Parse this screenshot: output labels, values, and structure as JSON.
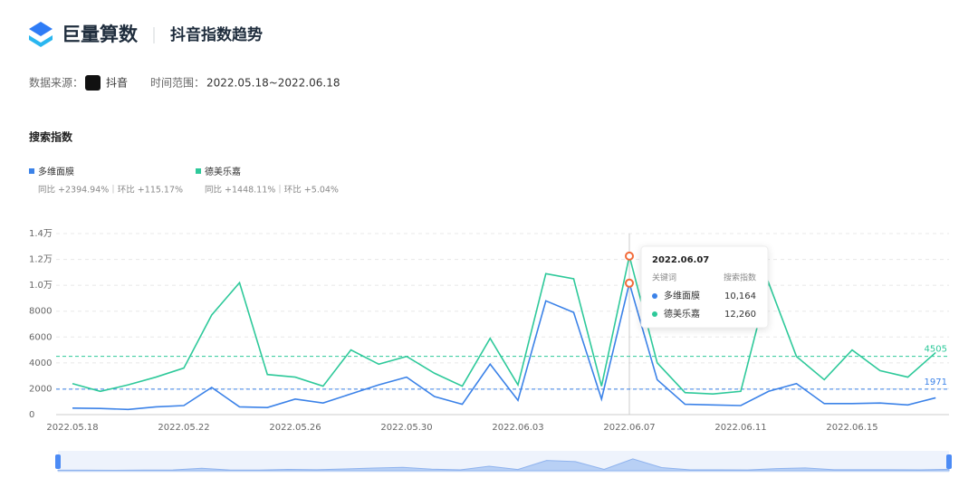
{
  "header": {
    "brand": "巨量算数",
    "page_title": "抖音指数趋势",
    "source_label": "数据来源：",
    "source": "抖音",
    "range_label": "时间范围：",
    "range": "2022.05.18~2022.06.18"
  },
  "chart_data": {
    "type": "line",
    "title": "搜索指数",
    "categories": [
      "2022.05.18",
      null,
      null,
      null,
      "2022.05.22",
      null,
      null,
      null,
      "2022.05.26",
      null,
      null,
      null,
      "2022.05.30",
      null,
      null,
      null,
      "2022.06.03",
      null,
      null,
      null,
      "2022.06.07",
      null,
      null,
      null,
      "2022.06.11",
      null,
      null,
      null,
      "2022.06.15",
      null,
      null,
      null
    ],
    "series": [
      {
        "name": "多维面膜",
        "color": "#3b82e8",
        "stats": "同比 +2394.94%｜环比 +115.17%",
        "average": 1971,
        "values": [
          500,
          480,
          400,
          600,
          700,
          2100,
          600,
          550,
          1200,
          900,
          1600,
          2300,
          2900,
          1400,
          800,
          3900,
          1100,
          8800,
          7900,
          1200,
          10164,
          2700,
          800,
          750,
          700,
          1800,
          2400,
          850,
          850,
          900,
          750,
          1300
        ],
        "value_labels": [
          null,
          null,
          null,
          null,
          null,
          null,
          null,
          null,
          null,
          null,
          null,
          null,
          null,
          null,
          null,
          null,
          null,
          null,
          null,
          null,
          "10,164",
          null,
          null,
          null,
          null,
          null,
          null,
          null,
          null,
          null,
          null,
          null
        ]
      },
      {
        "name": "德美乐嘉",
        "color": "#2ec99a",
        "stats": "同比 +1448.11%｜环比 +5.04%",
        "average": 4505,
        "values": [
          2400,
          1800,
          2300,
          2900,
          3600,
          7700,
          10200,
          3100,
          2900,
          2200,
          5000,
          3900,
          4500,
          3200,
          2200,
          5900,
          2300,
          10900,
          10500,
          2200,
          12260,
          4000,
          1700,
          1600,
          1800,
          10200,
          4500,
          2700,
          5000,
          3400,
          2900,
          4800
        ],
        "value_labels": [
          null,
          null,
          null,
          null,
          null,
          null,
          null,
          null,
          null,
          null,
          null,
          null,
          null,
          null,
          null,
          null,
          null,
          null,
          null,
          null,
          "12,260",
          null,
          null,
          null,
          null,
          null,
          null,
          null,
          null,
          null,
          null,
          null
        ]
      }
    ],
    "ylim": [
      0,
      14000
    ],
    "yticks": [
      0,
      2000,
      4000,
      6000,
      8000,
      {
        "value": 10000,
        "label": "1.0万"
      },
      {
        "value": 12000,
        "label": "1.2万"
      },
      {
        "value": 14000,
        "label": "1.4万"
      }
    ],
    "grid": true,
    "tooltip": {
      "title": "2022.06.07",
      "columns": [
        "关键词",
        "搜索指数"
      ]
    }
  }
}
